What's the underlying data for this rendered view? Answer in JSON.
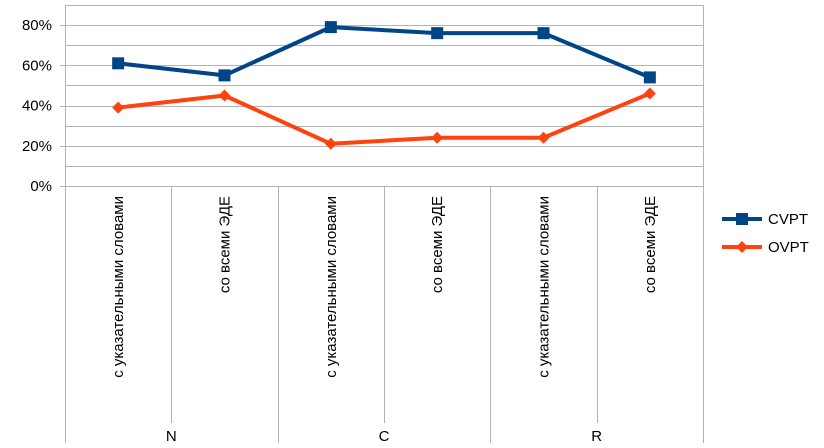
{
  "chart_data": {
    "type": "line",
    "categories": [
      "с указательными словами",
      "со всеми ЭДЕ",
      "с указательными словами",
      "со всеми ЭДЕ",
      "с указательными словами",
      "со всеми ЭДЕ"
    ],
    "groups": [
      {
        "label": "N",
        "span": [
          0,
          1
        ]
      },
      {
        "label": "C",
        "span": [
          2,
          3
        ]
      },
      {
        "label": "R",
        "span": [
          4,
          5
        ]
      }
    ],
    "series": [
      {
        "name": "CVPT",
        "color": "#004586",
        "marker": "square",
        "values": [
          0.61,
          0.55,
          0.79,
          0.76,
          0.76,
          0.54
        ]
      },
      {
        "name": "OVPT",
        "color": "#ff420e",
        "marker": "diamond",
        "values": [
          0.39,
          0.45,
          0.21,
          0.24,
          0.24,
          0.46
        ]
      }
    ],
    "y_ticks": [
      "0%",
      "20%",
      "40%",
      "60%",
      "80%"
    ],
    "ylim": [
      0,
      0.9
    ],
    "y_format": "percent",
    "grid": true,
    "legend_position": "right",
    "title": "",
    "xlabel": "",
    "ylabel": ""
  }
}
